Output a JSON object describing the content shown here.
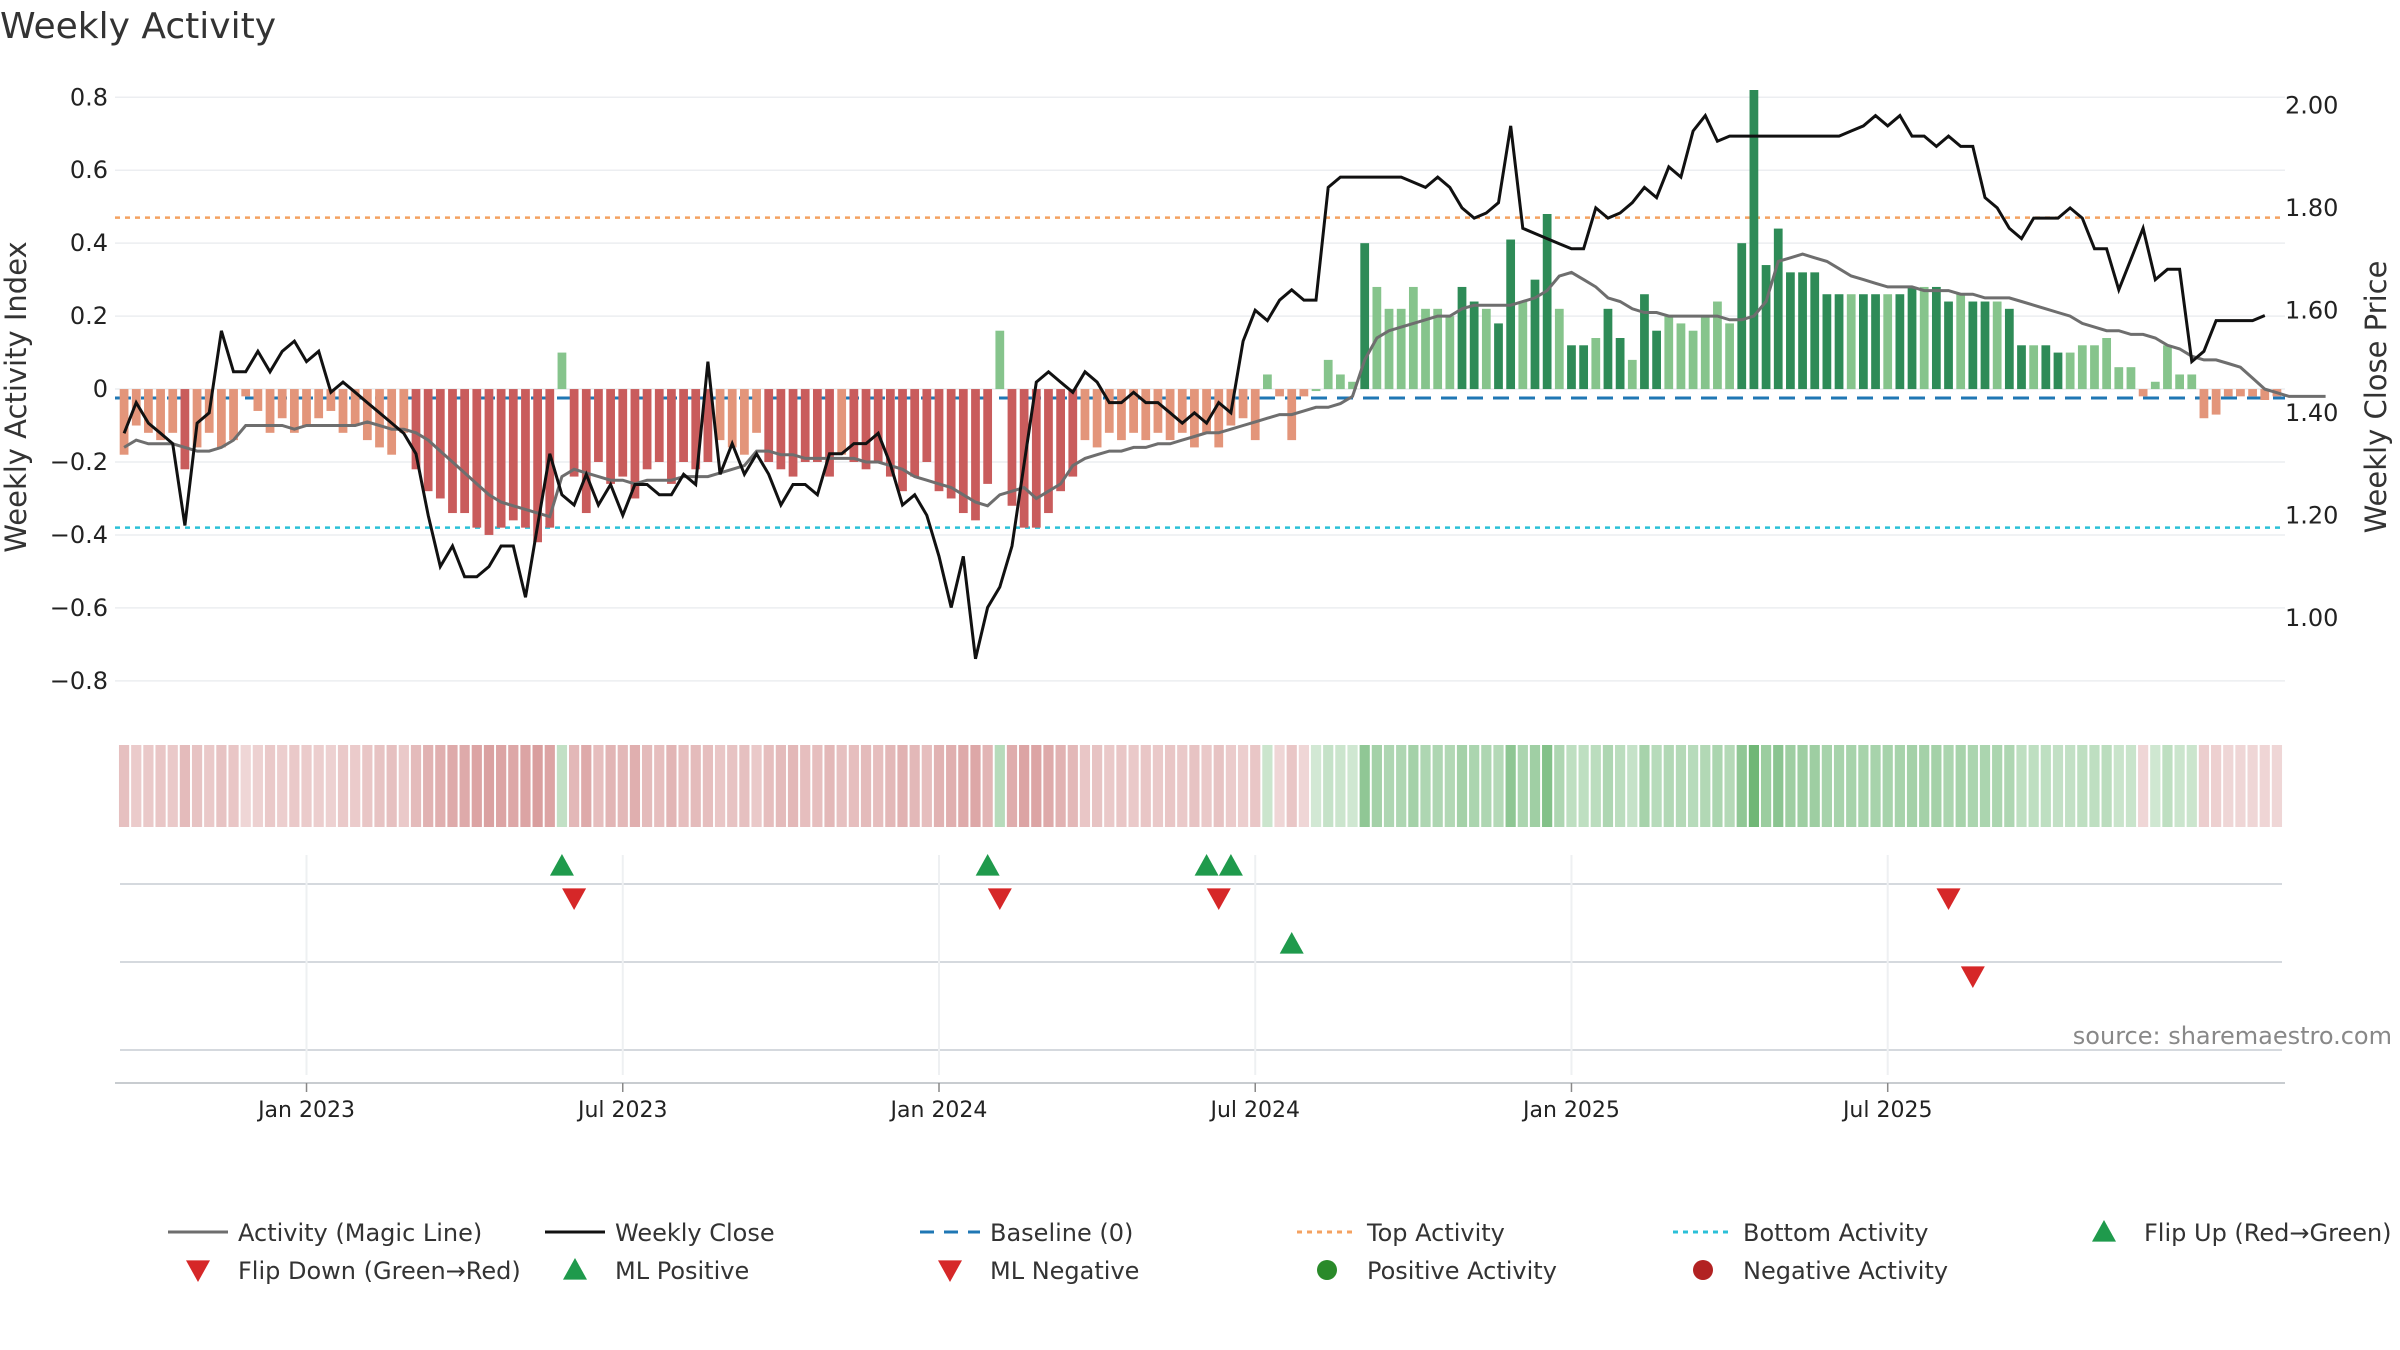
{
  "chart_data": {
    "type": "bar",
    "title": "Weekly Activity",
    "ylabel_left": "Weekly Activity Index",
    "ylabel_right": "Weekly Close Price",
    "left_axis": {
      "range": [
        -0.88,
        0.82
      ],
      "ticks": [
        "0.8",
        "0.6",
        "0.4",
        "0.2",
        "0",
        "−0.2",
        "−0.4",
        "−0.6",
        "−0.8"
      ],
      "tick_values": [
        0.8,
        0.6,
        0.4,
        0.2,
        0,
        -0.2,
        -0.4,
        -0.6,
        -0.8
      ]
    },
    "right_axis": {
      "range": [
        0.82,
        2.03
      ],
      "ticks": [
        "2.00",
        "1.80",
        "1.60",
        "1.40",
        "1.20",
        "1.00"
      ],
      "tick_values": [
        2.0,
        1.8,
        1.6,
        1.4,
        1.2,
        1.0
      ]
    },
    "x_ticks": [
      "Jan 2023",
      "Jul 2023",
      "Jan 2024",
      "Jul 2024",
      "Jan 2025",
      "Jul 2025"
    ],
    "x_tick_weeks": [
      15,
      41,
      67,
      93,
      119,
      145
    ],
    "top_activity": 0.47,
    "bottom_activity": -0.38,
    "baseline": 0,
    "activity": [
      -0.18,
      -0.1,
      -0.12,
      -0.14,
      -0.12,
      -0.22,
      -0.16,
      -0.12,
      -0.16,
      -0.14,
      -0.02,
      -0.06,
      -0.12,
      -0.08,
      -0.12,
      -0.1,
      -0.08,
      -0.06,
      -0.12,
      -0.1,
      -0.14,
      -0.16,
      -0.18,
      -0.12,
      -0.22,
      -0.28,
      -0.3,
      -0.34,
      -0.34,
      -0.38,
      -0.4,
      -0.38,
      -0.36,
      -0.38,
      -0.42,
      -0.38,
      0.1,
      -0.24,
      -0.34,
      -0.2,
      -0.26,
      -0.24,
      -0.3,
      -0.22,
      -0.2,
      -0.26,
      -0.2,
      -0.22,
      -0.2,
      -0.14,
      -0.16,
      -0.18,
      -0.12,
      -0.2,
      -0.22,
      -0.24,
      -0.2,
      -0.2,
      -0.24,
      -0.18,
      -0.2,
      -0.22,
      -0.2,
      -0.24,
      -0.28,
      -0.24,
      -0.2,
      -0.28,
      -0.3,
      -0.34,
      -0.36,
      -0.26,
      0.16,
      -0.32,
      -0.38,
      -0.38,
      -0.34,
      -0.28,
      -0.24,
      -0.14,
      -0.16,
      -0.12,
      -0.14,
      -0.12,
      -0.14,
      -0.12,
      -0.14,
      -0.12,
      -0.16,
      -0.12,
      -0.16,
      -0.1,
      -0.08,
      -0.14,
      0.04,
      -0.02,
      -0.14,
      -0.02,
      0.0,
      0.08,
      0.04,
      0.02,
      0.4,
      0.28,
      0.22,
      0.22,
      0.28,
      0.22,
      0.22,
      0.2,
      0.28,
      0.24,
      0.22,
      0.18,
      0.41,
      0.24,
      0.3,
      0.48,
      0.22,
      0.12,
      0.12,
      0.14,
      0.22,
      0.14,
      0.08,
      0.26,
      0.16,
      0.2,
      0.18,
      0.16,
      0.2,
      0.24,
      0.18,
      0.4,
      0.82,
      0.34,
      0.44,
      0.32,
      0.32,
      0.32,
      0.26,
      0.26,
      0.26,
      0.26,
      0.26,
      0.26,
      0.26,
      0.28,
      0.28,
      0.28,
      0.24,
      0.26,
      0.24,
      0.24,
      0.24,
      0.22,
      0.12,
      0.12,
      0.12,
      0.1,
      0.1,
      0.12,
      0.12,
      0.14,
      0.06,
      0.06,
      -0.02,
      0.02,
      0.12,
      0.04,
      0.04,
      -0.08,
      -0.07,
      -0.02,
      -0.02,
      -0.02,
      -0.03,
      -0.02
    ],
    "magic_line": [
      -0.16,
      -0.14,
      -0.15,
      -0.15,
      -0.15,
      -0.16,
      -0.17,
      -0.17,
      -0.16,
      -0.14,
      -0.1,
      -0.1,
      -0.1,
      -0.1,
      -0.11,
      -0.1,
      -0.1,
      -0.1,
      -0.1,
      -0.1,
      -0.09,
      -0.1,
      -0.11,
      -0.11,
      -0.12,
      -0.14,
      -0.17,
      -0.2,
      -0.23,
      -0.26,
      -0.29,
      -0.31,
      -0.32,
      -0.33,
      -0.34,
      -0.35,
      -0.24,
      -0.22,
      -0.23,
      -0.24,
      -0.25,
      -0.25,
      -0.26,
      -0.25,
      -0.25,
      -0.25,
      -0.24,
      -0.24,
      -0.24,
      -0.23,
      -0.22,
      -0.21,
      -0.17,
      -0.17,
      -0.18,
      -0.18,
      -0.19,
      -0.19,
      -0.19,
      -0.19,
      -0.19,
      -0.2,
      -0.2,
      -0.21,
      -0.22,
      -0.24,
      -0.25,
      -0.26,
      -0.27,
      -0.29,
      -0.31,
      -0.32,
      -0.29,
      -0.28,
      -0.27,
      -0.3,
      -0.28,
      -0.26,
      -0.21,
      -0.19,
      -0.18,
      -0.17,
      -0.17,
      -0.16,
      -0.16,
      -0.15,
      -0.15,
      -0.14,
      -0.13,
      -0.12,
      -0.12,
      -0.11,
      -0.1,
      -0.09,
      -0.08,
      -0.07,
      -0.07,
      -0.06,
      -0.05,
      -0.05,
      -0.04,
      -0.02,
      0.08,
      0.14,
      0.16,
      0.17,
      0.18,
      0.19,
      0.2,
      0.2,
      0.22,
      0.23,
      0.23,
      0.23,
      0.23,
      0.24,
      0.25,
      0.27,
      0.31,
      0.32,
      0.3,
      0.28,
      0.25,
      0.24,
      0.22,
      0.21,
      0.21,
      0.2,
      0.2,
      0.2,
      0.2,
      0.2,
      0.19,
      0.19,
      0.2,
      0.24,
      0.35,
      0.36,
      0.37,
      0.36,
      0.35,
      0.33,
      0.31,
      0.3,
      0.29,
      0.28,
      0.28,
      0.28,
      0.27,
      0.27,
      0.27,
      0.26,
      0.26,
      0.25,
      0.25,
      0.25,
      0.24,
      0.23,
      0.22,
      0.21,
      0.2,
      0.18,
      0.17,
      0.16,
      0.16,
      0.15,
      0.15,
      0.14,
      0.12,
      0.11,
      0.09,
      0.08,
      0.08,
      0.07,
      0.06,
      0.03,
      0.0,
      -0.01,
      -0.02,
      -0.02,
      -0.02,
      -0.02
    ],
    "weekly_close": [
      1.36,
      1.42,
      1.38,
      1.36,
      1.34,
      1.18,
      1.38,
      1.4,
      1.56,
      1.48,
      1.48,
      1.52,
      1.48,
      1.52,
      1.54,
      1.5,
      1.52,
      1.44,
      1.46,
      1.44,
      1.42,
      1.4,
      1.38,
      1.36,
      1.32,
      1.2,
      1.1,
      1.14,
      1.08,
      1.08,
      1.1,
      1.14,
      1.14,
      1.04,
      1.18,
      1.32,
      1.24,
      1.22,
      1.28,
      1.22,
      1.26,
      1.2,
      1.26,
      1.26,
      1.24,
      1.24,
      1.28,
      1.26,
      1.5,
      1.28,
      1.34,
      1.28,
      1.32,
      1.28,
      1.22,
      1.26,
      1.26,
      1.24,
      1.32,
      1.32,
      1.34,
      1.34,
      1.36,
      1.3,
      1.22,
      1.24,
      1.2,
      1.12,
      1.02,
      1.12,
      0.92,
      1.02,
      1.06,
      1.14,
      1.3,
      1.46,
      1.48,
      1.46,
      1.44,
      1.48,
      1.46,
      1.42,
      1.42,
      1.44,
      1.42,
      1.42,
      1.4,
      1.38,
      1.4,
      1.38,
      1.42,
      1.4,
      1.54,
      1.6,
      1.58,
      1.62,
      1.64,
      1.62,
      1.62,
      1.84,
      1.86,
      1.86,
      1.86,
      1.86,
      1.86,
      1.86,
      1.85,
      1.84,
      1.86,
      1.84,
      1.8,
      1.78,
      1.79,
      1.81,
      1.96,
      1.76,
      1.75,
      1.74,
      1.73,
      1.72,
      1.72,
      1.8,
      1.78,
      1.79,
      1.81,
      1.84,
      1.82,
      1.88,
      1.86,
      1.95,
      1.98,
      1.93,
      1.94,
      1.94,
      1.94,
      1.94,
      1.94,
      1.94,
      1.94,
      1.94,
      1.94,
      1.94,
      1.95,
      1.96,
      1.98,
      1.96,
      1.98,
      1.94,
      1.94,
      1.92,
      1.94,
      1.92,
      1.92,
      1.82,
      1.8,
      1.76,
      1.74,
      1.78,
      1.78,
      1.78,
      1.8,
      1.78,
      1.72,
      1.72,
      1.64,
      1.7,
      1.76,
      1.66,
      1.68,
      1.68,
      1.5,
      1.52,
      1.58,
      1.58,
      1.58,
      1.58,
      1.59
    ],
    "signals": {
      "flip_up": [
        36,
        71,
        89,
        91
      ],
      "flip_down": [
        37,
        72,
        90,
        150
      ],
      "ml_positive": [
        96
      ],
      "ml_negative": [
        152
      ]
    },
    "legend": [
      "Activity (Magic Line)",
      "Weekly Close",
      "Baseline (0)",
      "Top Activity",
      "Bottom Activity",
      "Flip Up (Red→Green)",
      "Flip Down (Green→Red)",
      "ML Positive",
      "ML Negative",
      "Positive Activity",
      "Negative Activity"
    ],
    "source": "source: sharemaestro.com",
    "colors": {
      "pos_strong": "#2e8b57",
      "pos_light": "#86c48c",
      "neg_strong": "#c95c5c",
      "neg_light": "#e3957a",
      "magic_line": "#6e6e6e",
      "close": "#111111",
      "baseline": "#1f77b4",
      "top": "#f4a261",
      "bottom": "#2bc0d8",
      "up": "#1f9a4c",
      "down": "#d62728"
    }
  }
}
